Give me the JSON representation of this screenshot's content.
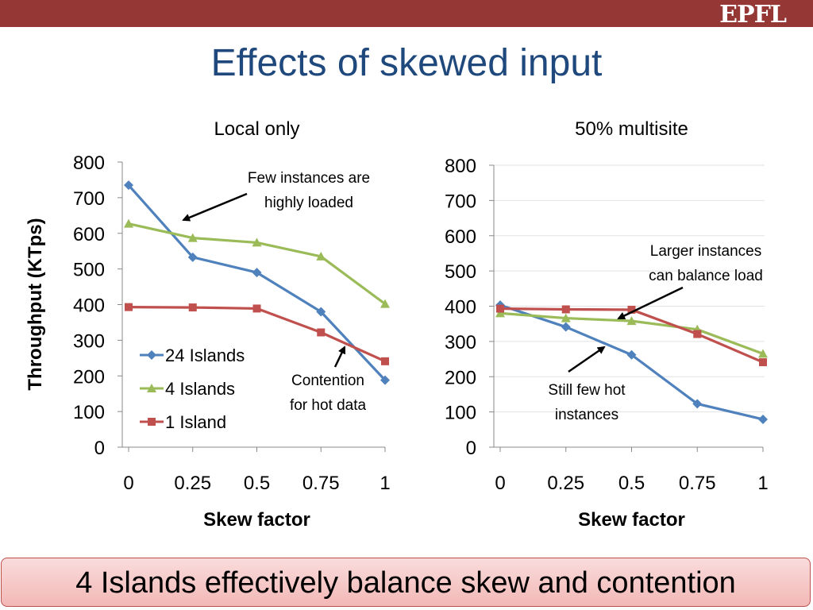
{
  "slide": {
    "title": "Effects of skewed input",
    "logo": "EPFL",
    "takeaway": "4 Islands effectively balance skew and contention"
  },
  "colors": {
    "header_bar": "#953735",
    "title": "#1f497d",
    "series_24": "#4f81bd",
    "series_4": "#9bbb59",
    "series_1": "#c0504d"
  },
  "chart_data": [
    {
      "type": "line",
      "title": "Local only",
      "xlabel": "Skew factor",
      "ylabel": "Throughput (KTps)",
      "x": [
        0,
        0.25,
        0.5,
        0.75,
        1
      ],
      "x_tick_labels": [
        "0",
        "0.25",
        "0.5",
        "0.75",
        "1"
      ],
      "ylim": [
        0,
        800
      ],
      "y_ticks": [
        0,
        100,
        200,
        300,
        400,
        500,
        600,
        700,
        800
      ],
      "grid": false,
      "legend": "bottom-left",
      "series": [
        {
          "name": "24 Islands",
          "values": [
            735,
            533,
            490,
            380,
            188
          ],
          "marker": "diamond"
        },
        {
          "name": "4 Islands",
          "values": [
            627,
            587,
            574,
            535,
            402
          ],
          "marker": "triangle"
        },
        {
          "name": "1 Island",
          "values": [
            393,
            392,
            389,
            322,
            241
          ],
          "marker": "square"
        }
      ],
      "annotations": [
        {
          "lines": [
            "Few instances are",
            "highly loaded"
          ]
        },
        {
          "lines": [
            "Contention",
            "for hot data"
          ]
        }
      ]
    },
    {
      "type": "line",
      "title": "50% multisite",
      "xlabel": "Skew factor",
      "ylabel": "",
      "x": [
        0,
        0.25,
        0.5,
        0.75,
        1
      ],
      "x_tick_labels": [
        "0",
        "0.25",
        "0.5",
        "0.75",
        "1"
      ],
      "ylim": [
        0,
        800
      ],
      "y_ticks": [
        0,
        100,
        200,
        300,
        400,
        500,
        600,
        700,
        800
      ],
      "grid": true,
      "legend": "",
      "series": [
        {
          "name": "24 Islands",
          "values": [
            403,
            341,
            262,
            123,
            79
          ],
          "marker": "diamond"
        },
        {
          "name": "4 Islands",
          "values": [
            380,
            366,
            358,
            334,
            265
          ],
          "marker": "triangle"
        },
        {
          "name": "1 Island",
          "values": [
            393,
            391,
            390,
            321,
            241
          ],
          "marker": "square"
        }
      ],
      "annotations": [
        {
          "lines": [
            "Larger instances",
            "can balance load"
          ]
        },
        {
          "lines": [
            "Still few hot",
            "instances"
          ]
        }
      ]
    }
  ]
}
